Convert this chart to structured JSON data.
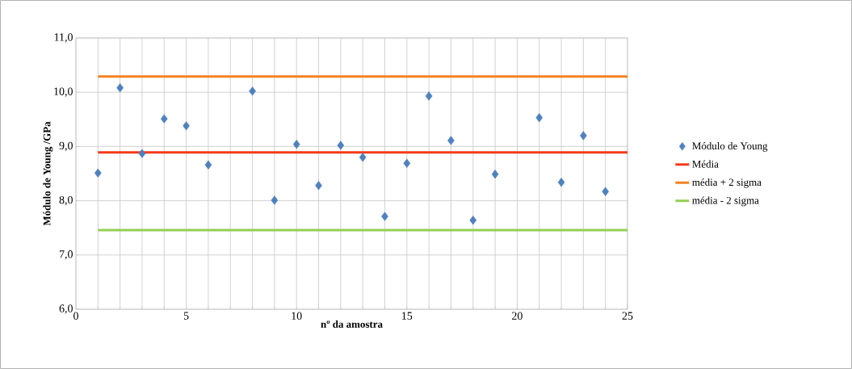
{
  "chart_data": {
    "type": "scatter",
    "xlabel": "nº da amostra",
    "ylabel": "Módulo de Young /GPa",
    "xlim": [
      0,
      25
    ],
    "ylim": [
      6,
      11
    ],
    "xticks": [
      0,
      {
        "value": 1,
        "label": null
      },
      {
        "value": 2,
        "label": null
      },
      {
        "value": 3,
        "label": null
      },
      {
        "value": 4,
        "label": null
      },
      5,
      {
        "value": 6,
        "label": null
      },
      {
        "value": 7,
        "label": null
      },
      {
        "value": 8,
        "label": null
      },
      {
        "value": 9,
        "label": null
      },
      10,
      {
        "value": 11,
        "label": null
      },
      {
        "value": 12,
        "label": null
      },
      {
        "value": 13,
        "label": null
      },
      {
        "value": 14,
        "label": null
      },
      15,
      {
        "value": 16,
        "label": null
      },
      {
        "value": 17,
        "label": null
      },
      {
        "value": 18,
        "label": null
      },
      {
        "value": 19,
        "label": null
      },
      20,
      {
        "value": 21,
        "label": null
      },
      {
        "value": 22,
        "label": null
      },
      {
        "value": 23,
        "label": null
      },
      {
        "value": 24,
        "label": null
      },
      25
    ],
    "yticks": [
      {
        "value": 6,
        "label": "6,0"
      },
      {
        "value": 7,
        "label": "7,0"
      },
      {
        "value": 8,
        "label": "8,0"
      },
      {
        "value": 9,
        "label": "9,0"
      },
      {
        "value": 10,
        "label": "10,0"
      },
      {
        "value": 11,
        "label": "11,0"
      }
    ],
    "grid": true,
    "legend": "right",
    "series": [
      {
        "name": "Módulo de Young",
        "marker": "diamond",
        "color": "#4f81bd",
        "x": [
          1,
          2,
          3,
          4,
          5,
          6,
          8,
          9,
          10,
          11,
          12,
          13,
          14,
          15,
          16,
          17,
          18,
          19,
          21,
          22,
          23,
          24
        ],
        "values": [
          8.51,
          10.08,
          8.87,
          9.51,
          9.38,
          8.66,
          10.02,
          8.01,
          9.04,
          8.28,
          9.02,
          8.8,
          7.71,
          8.69,
          9.93,
          9.11,
          7.64,
          8.49,
          9.53,
          8.34,
          9.2,
          8.17
        ]
      },
      {
        "name": "Média",
        "type": "line",
        "color": "#f53a1a",
        "x": [
          1,
          25
        ],
        "values": [
          8.89,
          8.89
        ]
      },
      {
        "name": "média + 2 sigma",
        "type": "line",
        "color": "#f5821f",
        "x": [
          1,
          25
        ],
        "values": [
          10.29,
          10.29
        ]
      },
      {
        "name": "média - 2 sigma",
        "type": "line",
        "color": "#93cf55",
        "x": [
          1,
          25
        ],
        "values": [
          7.46,
          7.46
        ]
      }
    ]
  }
}
